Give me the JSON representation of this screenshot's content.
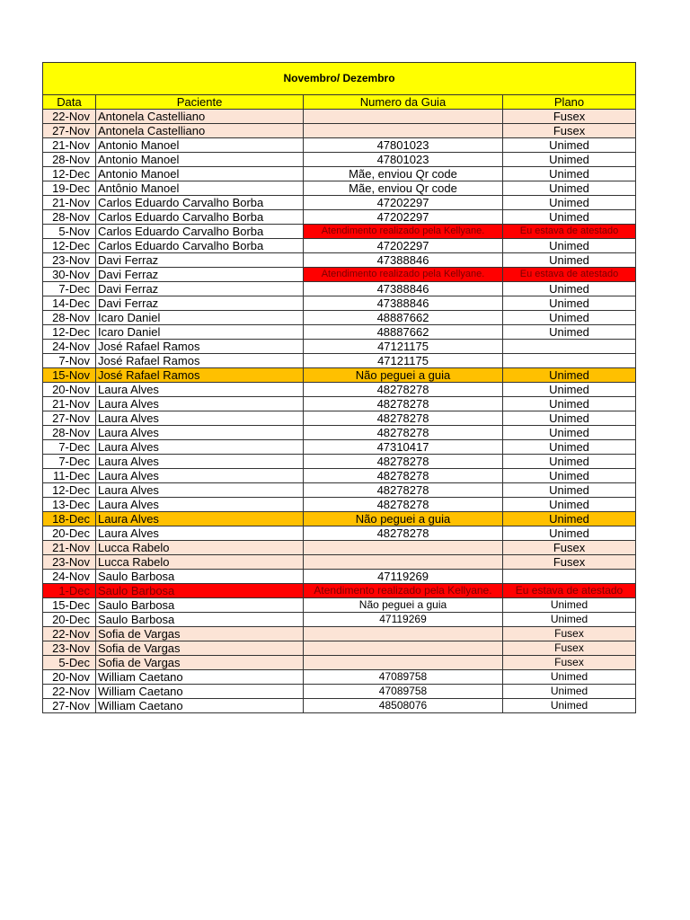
{
  "title": "Novembro/ Dezembro",
  "columns": [
    "Data",
    "Paciente",
    "Numero da Guia",
    "Plano"
  ],
  "colors": {
    "header": "#ffff00",
    "fusex": "#fce4d6",
    "pending": "#ffc000",
    "alert": "#ff0000"
  },
  "rows": [
    {
      "date": "22-Nov",
      "patient": "Antonela Castelliano",
      "guide": "",
      "plan": "Fusex",
      "style": "fusex"
    },
    {
      "date": "27-Nov",
      "patient": "Antonela Castelliano",
      "guide": "",
      "plan": "Fusex",
      "style": "fusex"
    },
    {
      "date": "21-Nov",
      "patient": "Antonio Manoel",
      "guide": "47801023",
      "plan": "Unimed",
      "style": ""
    },
    {
      "date": "28-Nov",
      "patient": "Antonio Manoel",
      "guide": "47801023",
      "plan": "Unimed",
      "style": ""
    },
    {
      "date": "12-Dec",
      "patient": "Antonio Manoel",
      "guide": "Mãe, enviou Qr code",
      "plan": "Unimed",
      "style": ""
    },
    {
      "date": "19-Dec",
      "patient": "Antônio Manoel",
      "guide": "Mãe, enviou Qr code",
      "plan": "Unimed",
      "style": ""
    },
    {
      "date": "21-Nov",
      "patient": "Carlos Eduardo Carvalho Borba",
      "guide": "47202297",
      "plan": "Unimed",
      "style": ""
    },
    {
      "date": "28-Nov",
      "patient": "Carlos Eduardo Carvalho Borba",
      "guide": "47202297",
      "plan": "Unimed",
      "style": ""
    },
    {
      "date": "5-Nov",
      "patient": "Carlos Eduardo Carvalho Borba",
      "guide": "Atendimento realizado pela Kellyane.",
      "plan": "Eu estava de atestado",
      "style": "redcells"
    },
    {
      "date": "12-Dec",
      "patient": "Carlos Eduardo Carvalho Borba",
      "guide": "47202297",
      "plan": "Unimed",
      "style": ""
    },
    {
      "date": "23-Nov",
      "patient": "Davi Ferraz",
      "guide": "47388846",
      "plan": "Unimed",
      "style": ""
    },
    {
      "date": "30-Nov",
      "patient": "Davi Ferraz",
      "guide": "Atendimento realizado pela Kellyane.",
      "plan": "Eu estava de atestado",
      "style": "redcells"
    },
    {
      "date": "7-Dec",
      "patient": "Davi Ferraz",
      "guide": "47388846",
      "plan": "Unimed",
      "style": ""
    },
    {
      "date": "14-Dec",
      "patient": "Davi Ferraz",
      "guide": "47388846",
      "plan": "Unimed",
      "style": ""
    },
    {
      "date": "28-Nov",
      "patient": "Icaro Daniel",
      "guide": "48887662",
      "plan": "Unimed",
      "style": ""
    },
    {
      "date": "12-Dec",
      "patient": "Icaro Daniel",
      "guide": "48887662",
      "plan": "Unimed",
      "style": ""
    },
    {
      "date": "24-Nov",
      "patient": "José Rafael Ramos",
      "guide": "47121175",
      "plan": "",
      "style": ""
    },
    {
      "date": "7-Nov",
      "patient": "José Rafael Ramos",
      "guide": "47121175",
      "plan": "",
      "style": ""
    },
    {
      "date": "15-Nov",
      "patient": "José Rafael Ramos",
      "guide": "Não peguei a guia",
      "plan": "Unimed",
      "style": "orange"
    },
    {
      "date": "20-Nov",
      "patient": "Laura Alves",
      "guide": "48278278",
      "plan": "Unimed",
      "style": ""
    },
    {
      "date": "21-Nov",
      "patient": "Laura Alves",
      "guide": "48278278",
      "plan": "Unimed",
      "style": ""
    },
    {
      "date": "27-Nov",
      "patient": "Laura Alves",
      "guide": "48278278",
      "plan": "Unimed",
      "style": ""
    },
    {
      "date": "28-Nov",
      "patient": "Laura Alves",
      "guide": "48278278",
      "plan": "Unimed",
      "style": ""
    },
    {
      "date": "7-Dec",
      "patient": "Laura Alves",
      "guide": "47310417",
      "plan": "Unimed",
      "style": ""
    },
    {
      "date": "7-Dec",
      "patient": "Laura Alves",
      "guide": "48278278",
      "plan": "Unimed",
      "style": ""
    },
    {
      "date": "11-Dec",
      "patient": "Laura Alves",
      "guide": "48278278",
      "plan": "Unimed",
      "style": ""
    },
    {
      "date": "12-Dec",
      "patient": "Laura Alves",
      "guide": "48278278",
      "plan": "Unimed",
      "style": ""
    },
    {
      "date": "13-Dec",
      "patient": "Laura Alves",
      "guide": "48278278",
      "plan": "Unimed",
      "style": ""
    },
    {
      "date": "18-Dec",
      "patient": "Laura Alves",
      "guide": "Não peguei a guia",
      "plan": "Unimed",
      "style": "orange"
    },
    {
      "date": "20-Dec",
      "patient": "Laura Alves",
      "guide": "48278278",
      "plan": "Unimed",
      "style": ""
    },
    {
      "date": "21-Nov",
      "patient": "Lucca Rabelo",
      "guide": "",
      "plan": "Fusex",
      "style": "fusex"
    },
    {
      "date": "23-Nov",
      "patient": "Lucca Rabelo",
      "guide": "",
      "plan": "Fusex",
      "style": "fusex"
    },
    {
      "date": "24-Nov",
      "patient": "Saulo Barbosa",
      "guide": "47119269",
      "plan": "",
      "style": ""
    },
    {
      "date": "1-Dec",
      "patient": "Saulo Barbosa",
      "guide": "Atendimento realizado pela Kellyane.",
      "plan": "Eu estava de atestado",
      "style": "redrow"
    },
    {
      "date": "15-Dec",
      "patient": "Saulo Barbosa",
      "guide": "Não peguei a guia",
      "plan": "Unimed",
      "style": "small"
    },
    {
      "date": "20-Dec",
      "patient": "Saulo Barbosa",
      "guide": "47119269",
      "plan": "Unimed",
      "style": "small"
    },
    {
      "date": "22-Nov",
      "patient": "Sofia de Vargas",
      "guide": "",
      "plan": "Fusex",
      "style": "fusex small"
    },
    {
      "date": "23-Nov",
      "patient": "Sofia de Vargas",
      "guide": "",
      "plan": "Fusex",
      "style": "fusex small"
    },
    {
      "date": "5-Dec",
      "patient": "Sofia de Vargas",
      "guide": "",
      "plan": "Fusex",
      "style": "fusex small"
    },
    {
      "date": "20-Nov",
      "patient": "William Caetano",
      "guide": "47089758",
      "plan": "Unimed",
      "style": "small"
    },
    {
      "date": "22-Nov",
      "patient": "William Caetano",
      "guide": "47089758",
      "plan": "Unimed",
      "style": "small"
    },
    {
      "date": "27-Nov",
      "patient": "William Caetano",
      "guide": "48508076",
      "plan": "Unimed",
      "style": "small"
    }
  ]
}
